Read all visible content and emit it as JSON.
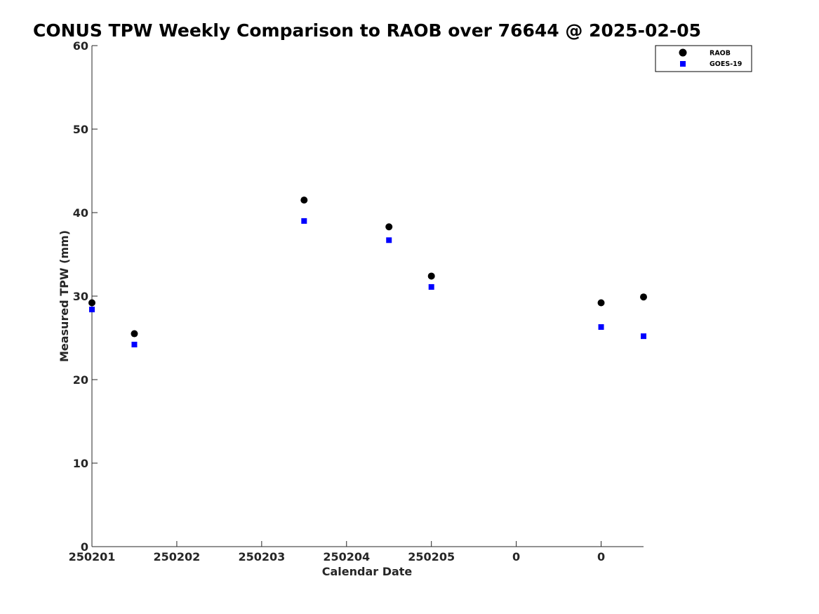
{
  "chart_data": {
    "type": "scatter",
    "title": "CONUS TPW Weekly Comparison to RAOB over 76644 @ 2025-02-05",
    "xlabel": "Calendar Date",
    "ylabel": "Measured TPW (mm)",
    "xlim": [
      0,
      13
    ],
    "ylim": [
      0,
      60
    ],
    "x_ticks": [
      0,
      2,
      4,
      6,
      8,
      10,
      12
    ],
    "x_tick_labels": [
      "250201",
      "250202",
      "250203",
      "250204",
      "250205",
      "0",
      "0"
    ],
    "y_ticks": [
      0,
      10,
      20,
      30,
      40,
      50,
      60
    ],
    "grid": false,
    "legend_position": "top-right",
    "series": [
      {
        "name": "RAOB",
        "marker": "circle",
        "color": "#000000",
        "x": [
          0,
          1,
          5,
          7,
          8,
          12,
          13
        ],
        "y": [
          29.2,
          25.5,
          41.5,
          38.3,
          32.4,
          29.2,
          29.9
        ]
      },
      {
        "name": "GOES-19",
        "marker": "square",
        "color": "#0000ff",
        "x": [
          0,
          1,
          5,
          7,
          8,
          12,
          13
        ],
        "y": [
          28.4,
          24.2,
          39.0,
          36.7,
          31.1,
          26.3,
          25.2
        ]
      }
    ]
  }
}
